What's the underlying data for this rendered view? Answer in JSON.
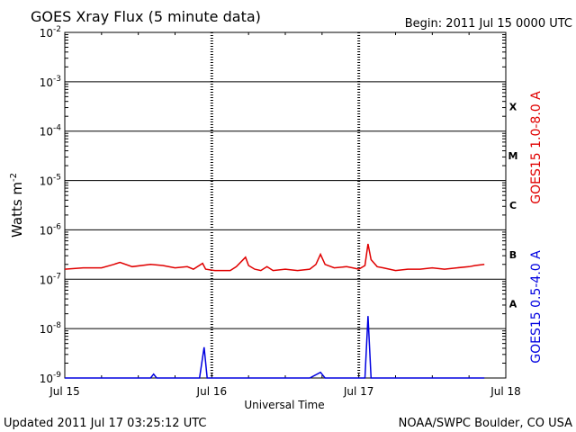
{
  "header": {
    "title": "GOES Xray Flux (5 minute data)",
    "begin": "Begin:  2011 Jul 15 0000 UTC"
  },
  "footer": {
    "updated": "Updated 2011 Jul 17 03:25:12 UTC",
    "source": "NOAA/SWPC Boulder, CO USA"
  },
  "chart_data": {
    "type": "line",
    "title": "GOES Xray Flux (5 minute data)",
    "xlabel": "Universal Time",
    "ylabel": "Watts m",
    "ylabel_sup": "-2",
    "y_scale": "log",
    "ylim": [
      1e-09,
      0.01
    ],
    "xlim": [
      "2011-07-15 00:00",
      "2011-07-18 00:00"
    ],
    "x_ticks": [
      "Jul 15",
      "Jul 16",
      "Jul 17",
      "Jul 18"
    ],
    "y_ticks": [
      {
        "base": "10",
        "exp": "-9",
        "value": 1e-09
      },
      {
        "base": "10",
        "exp": "-8",
        "value": 1e-08
      },
      {
        "base": "10",
        "exp": "-7",
        "value": 1e-07
      },
      {
        "base": "10",
        "exp": "-6",
        "value": 1e-06
      },
      {
        "base": "10",
        "exp": "-5",
        "value": 1e-05
      },
      {
        "base": "10",
        "exp": "-4",
        "value": 0.0001
      },
      {
        "base": "10",
        "exp": "-3",
        "value": 0.001
      },
      {
        "base": "10",
        "exp": "-2",
        "value": 0.01
      }
    ],
    "flare_classes": [
      {
        "label": "X",
        "low": 0.0001
      },
      {
        "label": "M",
        "low": 1e-05
      },
      {
        "label": "C",
        "low": 1e-06
      },
      {
        "label": "B",
        "low": 1e-07
      },
      {
        "label": "A",
        "low": 1e-08
      }
    ],
    "grid": true,
    "series": [
      {
        "name": "GOES15 1.0-8.0 A",
        "color": "#e00000",
        "points": [
          [
            "2011-07-15 00:00",
            1.6e-07
          ],
          [
            "2011-07-15 03:00",
            1.7e-07
          ],
          [
            "2011-07-15 06:00",
            1.7e-07
          ],
          [
            "2011-07-15 08:00",
            2e-07
          ],
          [
            "2011-07-15 09:00",
            2.2e-07
          ],
          [
            "2011-07-15 11:00",
            1.8e-07
          ],
          [
            "2011-07-15 14:00",
            2e-07
          ],
          [
            "2011-07-15 16:00",
            1.9e-07
          ],
          [
            "2011-07-15 18:00",
            1.7e-07
          ],
          [
            "2011-07-15 20:00",
            1.8e-07
          ],
          [
            "2011-07-15 21:00",
            1.6e-07
          ],
          [
            "2011-07-15 22:30",
            2.1e-07
          ],
          [
            "2011-07-15 23:00",
            1.6e-07
          ],
          [
            "2011-07-16 00:30",
            1.5e-07
          ],
          [
            "2011-07-16 02:00",
            1.5e-07
          ],
          [
            "2011-07-16 03:00",
            1.5e-07
          ],
          [
            "2011-07-16 04:00",
            1.8e-07
          ],
          [
            "2011-07-16 05:30",
            2.8e-07
          ],
          [
            "2011-07-16 06:00",
            1.9e-07
          ],
          [
            "2011-07-16 07:00",
            1.6e-07
          ],
          [
            "2011-07-16 08:00",
            1.5e-07
          ],
          [
            "2011-07-16 09:00",
            1.8e-07
          ],
          [
            "2011-07-16 10:00",
            1.5e-07
          ],
          [
            "2011-07-16 12:00",
            1.6e-07
          ],
          [
            "2011-07-16 14:00",
            1.5e-07
          ],
          [
            "2011-07-16 16:00",
            1.6e-07
          ],
          [
            "2011-07-16 17:00",
            2e-07
          ],
          [
            "2011-07-16 17:45",
            3.2e-07
          ],
          [
            "2011-07-16 18:30",
            2e-07
          ],
          [
            "2011-07-16 20:00",
            1.7e-07
          ],
          [
            "2011-07-16 22:00",
            1.8e-07
          ],
          [
            "2011-07-16 23:00",
            1.7e-07
          ],
          [
            "2011-07-17 00:00",
            1.6e-07
          ],
          [
            "2011-07-17 01:00",
            1.9e-07
          ],
          [
            "2011-07-17 01:30",
            5.2e-07
          ],
          [
            "2011-07-17 02:00",
            2.5e-07
          ],
          [
            "2011-07-17 03:00",
            1.8e-07
          ],
          [
            "2011-07-17 04:00",
            1.7e-07
          ],
          [
            "2011-07-17 06:00",
            1.5e-07
          ],
          [
            "2011-07-17 08:00",
            1.6e-07
          ],
          [
            "2011-07-17 10:00",
            1.6e-07
          ],
          [
            "2011-07-17 12:00",
            1.7e-07
          ],
          [
            "2011-07-17 14:00",
            1.6e-07
          ],
          [
            "2011-07-17 16:00",
            1.7e-07
          ],
          [
            "2011-07-17 18:00",
            1.8e-07
          ],
          [
            "2011-07-17 19:00",
            1.9e-07
          ],
          [
            "2011-07-17 20:30",
            2e-07
          ]
        ]
      },
      {
        "name": "GOES15 0.5-4.0 A",
        "color": "#0000e0",
        "points": [
          [
            "2011-07-15 00:00",
            1e-09
          ],
          [
            "2011-07-15 14:00",
            1e-09
          ],
          [
            "2011-07-15 14:30",
            1.2e-09
          ],
          [
            "2011-07-15 15:00",
            1e-09
          ],
          [
            "2011-07-15 19:00",
            1e-09
          ],
          [
            "2011-07-15 22:00",
            1e-09
          ],
          [
            "2011-07-15 22:45",
            4.2e-09
          ],
          [
            "2011-07-15 23:15",
            1e-09
          ],
          [
            "2011-07-16 16:00",
            1e-09
          ],
          [
            "2011-07-16 17:45",
            1.3e-09
          ],
          [
            "2011-07-16 18:30",
            1e-09
          ],
          [
            "2011-07-17 01:00",
            1e-09
          ],
          [
            "2011-07-17 01:30",
            1.8e-08
          ],
          [
            "2011-07-17 02:00",
            1e-09
          ],
          [
            "2011-07-17 05:00",
            1e-09
          ],
          [
            "2011-07-17 20:30",
            1e-09
          ]
        ]
      }
    ]
  }
}
